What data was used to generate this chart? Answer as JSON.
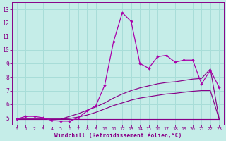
{
  "xlabel": "Windchill (Refroidissement éolien,°C)",
  "x_ticks": [
    0,
    1,
    2,
    3,
    4,
    5,
    6,
    7,
    8,
    9,
    10,
    11,
    12,
    13,
    14,
    15,
    16,
    17,
    18,
    19,
    20,
    21,
    22,
    23
  ],
  "ylim": [
    4.5,
    13.5
  ],
  "xlim": [
    -0.5,
    23.5
  ],
  "yticks": [
    5,
    6,
    7,
    8,
    9,
    10,
    11,
    12,
    13
  ],
  "bg_color": "#c5ede8",
  "grid_color": "#a8ddd8",
  "line_color": "#880088",
  "line_color2": "#aa00aa",
  "series1_x": [
    0,
    1,
    2,
    3,
    4,
    5,
    6,
    7,
    8,
    9,
    10,
    11,
    12,
    13,
    14,
    15,
    16,
    17,
    18,
    19,
    20,
    21,
    22,
    23
  ],
  "series1_y": [
    4.9,
    5.1,
    5.1,
    5.0,
    4.8,
    4.75,
    4.75,
    5.0,
    5.5,
    5.9,
    7.4,
    10.6,
    12.75,
    12.1,
    9.0,
    8.65,
    9.5,
    9.6,
    9.1,
    9.25,
    9.25,
    7.5,
    8.5,
    7.25
  ],
  "series2_x": [
    0,
    1,
    2,
    3,
    4,
    5,
    6,
    7,
    8,
    9,
    10,
    11,
    12,
    13,
    14,
    15,
    16,
    17,
    18,
    19,
    20,
    21,
    22,
    23
  ],
  "series2_y": [
    4.9,
    4.9,
    4.9,
    4.9,
    4.9,
    4.9,
    5.1,
    5.3,
    5.55,
    5.8,
    6.1,
    6.45,
    6.75,
    7.0,
    7.2,
    7.35,
    7.5,
    7.6,
    7.65,
    7.75,
    7.85,
    7.9,
    8.6,
    4.9
  ],
  "series3_x": [
    0,
    1,
    2,
    3,
    4,
    5,
    6,
    7,
    8,
    9,
    10,
    11,
    12,
    13,
    14,
    15,
    16,
    17,
    18,
    19,
    20,
    21,
    22,
    23
  ],
  "series3_y": [
    4.9,
    4.9,
    4.9,
    4.9,
    4.9,
    4.9,
    4.95,
    5.05,
    5.2,
    5.4,
    5.65,
    5.9,
    6.1,
    6.3,
    6.45,
    6.55,
    6.65,
    6.75,
    6.8,
    6.88,
    6.95,
    7.0,
    7.0,
    4.9
  ],
  "series4_x": [
    0,
    1,
    2,
    3,
    4,
    5,
    6,
    7,
    8,
    9,
    10,
    11,
    12,
    13,
    14,
    15,
    16,
    17,
    18,
    19,
    20,
    21,
    22,
    23
  ],
  "series4_y": [
    4.9,
    4.9,
    4.9,
    4.9,
    4.9,
    4.9,
    4.9,
    4.9,
    4.9,
    4.9,
    4.9,
    4.9,
    4.9,
    4.9,
    4.9,
    4.9,
    4.9,
    4.9,
    4.9,
    4.9,
    4.9,
    4.9,
    4.9,
    4.9
  ]
}
